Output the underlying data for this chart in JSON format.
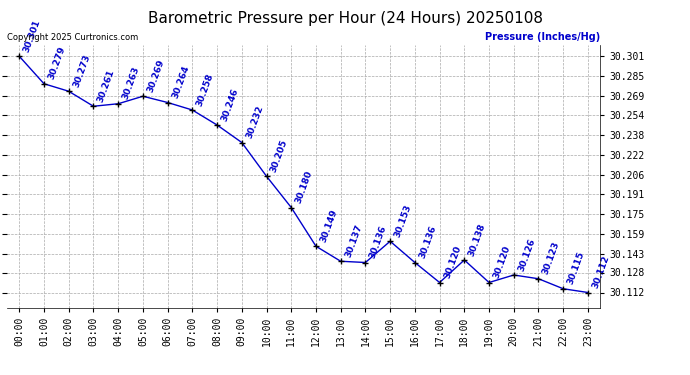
{
  "title": "Barometric Pressure per Hour (24 Hours) 20250108",
  "copyright_text": "Copyright 2025 Curtronics.com",
  "ylabel_right": "Pressure (Inches/Hg)",
  "hours": [
    0,
    1,
    2,
    3,
    4,
    5,
    6,
    7,
    8,
    9,
    10,
    11,
    12,
    13,
    14,
    15,
    16,
    17,
    18,
    19,
    20,
    21,
    22,
    23
  ],
  "hour_labels": [
    "00:00",
    "01:00",
    "02:00",
    "03:00",
    "04:00",
    "05:00",
    "06:00",
    "07:00",
    "08:00",
    "09:00",
    "10:00",
    "11:00",
    "12:00",
    "13:00",
    "14:00",
    "15:00",
    "16:00",
    "17:00",
    "18:00",
    "19:00",
    "20:00",
    "21:00",
    "22:00",
    "23:00"
  ],
  "values": [
    30.301,
    30.279,
    30.273,
    30.261,
    30.263,
    30.269,
    30.264,
    30.258,
    30.246,
    30.232,
    30.205,
    30.18,
    30.149,
    30.137,
    30.136,
    30.153,
    30.136,
    30.12,
    30.138,
    30.12,
    30.126,
    30.123,
    30.115,
    30.112
  ],
  "yticks": [
    30.112,
    30.128,
    30.143,
    30.159,
    30.175,
    30.191,
    30.206,
    30.222,
    30.238,
    30.254,
    30.269,
    30.285,
    30.301
  ],
  "line_color": "#0000cc",
  "marker_color": "#000000",
  "label_color": "#0000cc",
  "grid_color": "#aaaaaa",
  "bg_color": "#ffffff",
  "title_color": "#000000",
  "title_fontsize": 11,
  "tick_fontsize": 7,
  "annotation_fontsize": 6.5,
  "ylim_min": 30.1,
  "ylim_max": 30.31
}
